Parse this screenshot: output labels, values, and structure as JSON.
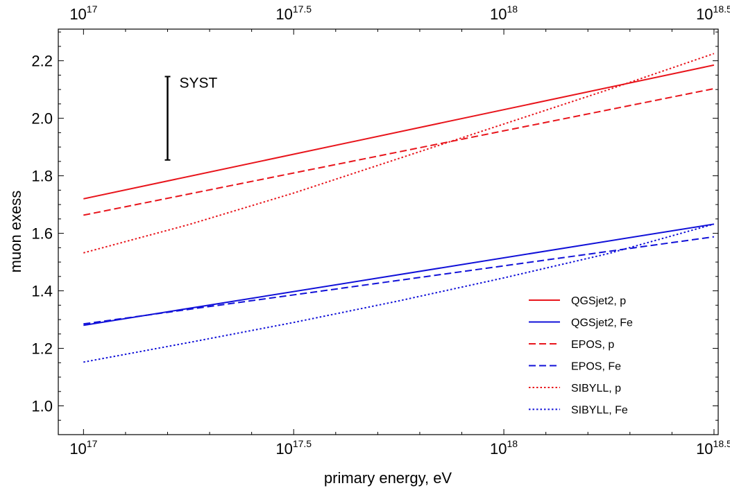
{
  "chart_data": {
    "type": "line",
    "title": "",
    "xlabel": "primary energy, eV",
    "ylabel": "muon exess",
    "x_scale": "log10",
    "xlim": [
      16.94,
      18.51
    ],
    "ylim": [
      0.9,
      2.31
    ],
    "x_ticks": [
      {
        "value": 17.0,
        "base": "10",
        "exp": "17"
      },
      {
        "value": 17.5,
        "base": "10",
        "exp": "17.5"
      },
      {
        "value": 18.0,
        "base": "10",
        "exp": "18"
      },
      {
        "value": 18.5,
        "base": "10",
        "exp": "18.5"
      }
    ],
    "y_ticks": [
      1.0,
      1.2,
      1.4,
      1.6,
      1.8,
      2.0,
      2.2
    ],
    "y_tick_labels": [
      "1.0",
      "1.2",
      "1.4",
      "1.6",
      "1.8",
      "2.0",
      "2.2"
    ],
    "series": [
      {
        "name": "QGSjet2, p",
        "color": "#e8141b",
        "style": "solid",
        "x": [
          17.0,
          18.5
        ],
        "y": [
          1.72,
          2.185
        ]
      },
      {
        "name": "QGSjet2, Fe",
        "color": "#1010d8",
        "style": "solid",
        "x": [
          17.0,
          18.5
        ],
        "y": [
          1.28,
          1.632
        ]
      },
      {
        "name": "EPOS, p",
        "color": "#e8141b",
        "style": "dashed",
        "x": [
          17.0,
          18.5
        ],
        "y": [
          1.663,
          2.103
        ]
      },
      {
        "name": "EPOS, Fe",
        "color": "#1010d8",
        "style": "dashed",
        "x": [
          17.0,
          18.5
        ],
        "y": [
          1.285,
          1.588
        ]
      },
      {
        "name": "SIBYLL, p",
        "color": "#e8141b",
        "style": "dotted",
        "x": [
          17.0,
          17.25,
          17.5,
          17.75,
          18.0,
          18.25,
          18.5
        ],
        "y": [
          1.532,
          1.63,
          1.74,
          1.86,
          1.98,
          2.1,
          2.225
        ]
      },
      {
        "name": "SIBYLL, Fe",
        "color": "#1010d8",
        "style": "dotted",
        "x": [
          17.0,
          17.25,
          17.5,
          17.75,
          18.0,
          18.25,
          18.5
        ],
        "y": [
          1.152,
          1.22,
          1.29,
          1.365,
          1.445,
          1.53,
          1.632
        ]
      }
    ],
    "annotations": [
      {
        "type": "error-bar",
        "label": "SYST",
        "x": 17.2,
        "y_low": 1.855,
        "y_high": 2.145
      }
    ],
    "legend_position": "bottom-right",
    "grid": false
  }
}
